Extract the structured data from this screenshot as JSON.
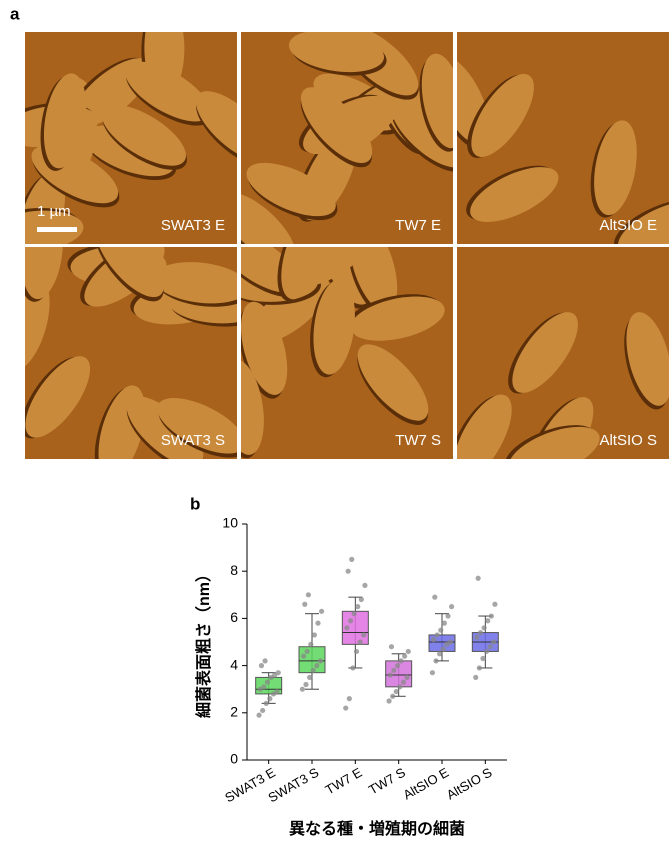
{
  "panel_a": {
    "label": "a",
    "scale_bar": "1 µm",
    "images": [
      "SWAT3 E",
      "TW7 E",
      "AltSIO E",
      "SWAT3 S",
      "TW7 S",
      "AltSIO S"
    ]
  },
  "panel_b_label": "b",
  "chart_data": {
    "type": "box",
    "y_label": "細菌表面粗さ（nm）",
    "x_label": "異なる種・増殖期の細菌",
    "categories": [
      "SWAT3 E",
      "SWAT3 S",
      "TW7 E",
      "TW7 S",
      "AltSIO E",
      "AltSIO S"
    ],
    "series": [
      {
        "name": "SWAT3 E",
        "color": "#5cd65c",
        "min": 2.4,
        "q1": 2.8,
        "median": 3.0,
        "q3": 3.5,
        "max": 3.7,
        "points": [
          1.9,
          2.1,
          2.4,
          2.6,
          2.8,
          2.9,
          3.0,
          3.1,
          3.3,
          3.5,
          3.6,
          3.7,
          4.0,
          4.2
        ]
      },
      {
        "name": "SWAT3 S",
        "color": "#5cd65c",
        "min": 3.0,
        "q1": 3.7,
        "median": 4.2,
        "q3": 4.8,
        "max": 6.2,
        "points": [
          3.0,
          3.2,
          3.5,
          3.8,
          4.0,
          4.2,
          4.4,
          4.6,
          4.9,
          5.3,
          5.8,
          6.3,
          6.6,
          7.0
        ]
      },
      {
        "name": "TW7 E",
        "color": "#e070e0",
        "min": 3.9,
        "q1": 4.9,
        "median": 5.4,
        "q3": 6.3,
        "max": 6.9,
        "points": [
          2.2,
          2.6,
          3.9,
          4.6,
          5.0,
          5.3,
          5.6,
          5.9,
          6.2,
          6.5,
          6.8,
          7.4,
          8.0,
          8.5
        ]
      },
      {
        "name": "TW7 S",
        "color": "#d472dc",
        "min": 2.7,
        "q1": 3.1,
        "median": 3.6,
        "q3": 4.2,
        "max": 4.5,
        "points": [
          2.5,
          2.7,
          2.9,
          3.1,
          3.3,
          3.5,
          3.6,
          3.8,
          4.0,
          4.2,
          4.4,
          4.6,
          4.8
        ]
      },
      {
        "name": "AltSIO E",
        "color": "#6b6be8",
        "min": 4.2,
        "q1": 4.6,
        "median": 5.0,
        "q3": 5.3,
        "max": 6.2,
        "points": [
          3.7,
          4.2,
          4.5,
          4.7,
          4.9,
          5.0,
          5.1,
          5.3,
          5.5,
          5.8,
          6.1,
          6.5,
          6.9
        ]
      },
      {
        "name": "AltSIO S",
        "color": "#6b6be8",
        "min": 3.9,
        "q1": 4.6,
        "median": 5.0,
        "q3": 5.4,
        "max": 6.1,
        "points": [
          3.5,
          3.9,
          4.3,
          4.6,
          4.8,
          5.0,
          5.2,
          5.4,
          5.6,
          5.9,
          6.1,
          6.6,
          7.7
        ]
      }
    ],
    "ylim": [
      0,
      10
    ],
    "yticks": [
      0,
      2,
      4,
      6,
      8,
      10
    ]
  }
}
